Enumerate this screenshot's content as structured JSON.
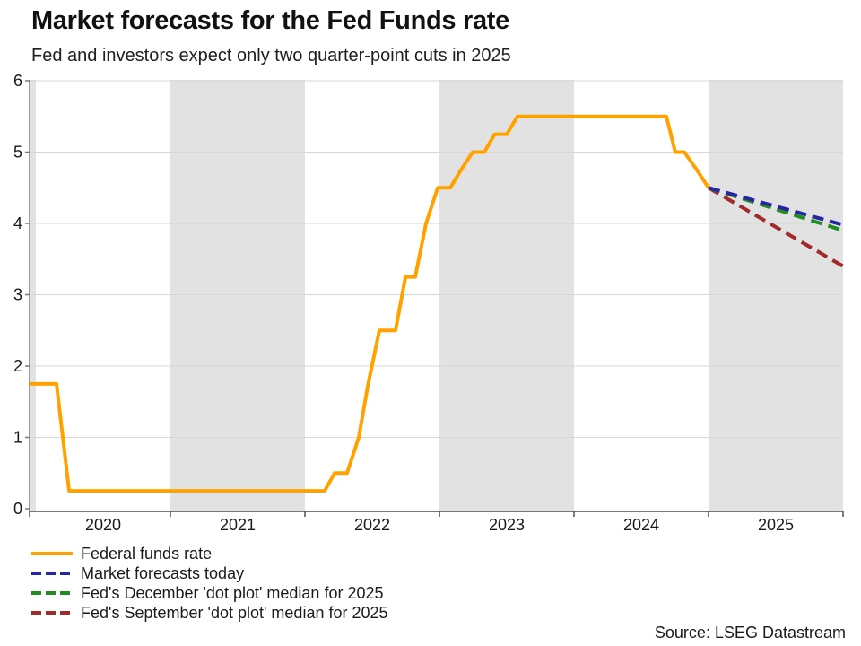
{
  "title": "Market forecasts for the Fed Funds rate",
  "subtitle": "Fed and investors expect only two quarter-point cuts in 2025",
  "source": "Source: LSEG Datastream",
  "colors": {
    "band": "#E2E2E2",
    "grid": "#D7D7D7",
    "axis": "#7A7A7A",
    "axis_dark": "#4D4D4D",
    "text": "#1A1A1A",
    "orange": "#FFA200",
    "blue": "#2626A0",
    "green": "#228B22",
    "dark_red": "#A12A2A"
  },
  "chart_data": {
    "type": "line",
    "title": "Market forecasts for the Fed Funds rate",
    "subtitle": "Fed and investors expect only two quarter-point cuts in 2025",
    "xlabel": "",
    "ylabel": "",
    "grid": true,
    "legend_position": "bottom-left",
    "x_axis": {
      "range": [
        2019.953,
        2026
      ],
      "tick_years": [
        2020,
        2021,
        2022,
        2023,
        2024,
        2025
      ]
    },
    "y_axis": {
      "range": [
        0,
        6
      ],
      "ticks": [
        0,
        1,
        2,
        3,
        4,
        5,
        6
      ]
    },
    "shaded_periods": [
      [
        2019.953,
        2020
      ],
      [
        2021,
        2022
      ],
      [
        2023,
        2024
      ],
      [
        2025,
        2026
      ]
    ],
    "series": [
      {
        "id": "federal-funds-rate",
        "name": "Federal funds rate",
        "color": "#FFA200",
        "style": "solid",
        "points": [
          [
            2019.953,
            1.75
          ],
          [
            2020.153,
            1.75
          ],
          [
            2020.247,
            0.25
          ],
          [
            2022.147,
            0.25
          ],
          [
            2022.22,
            0.5
          ],
          [
            2022.313,
            0.5
          ],
          [
            2022.4,
            1.0
          ],
          [
            2022.47,
            1.75
          ],
          [
            2022.553,
            2.5
          ],
          [
            2022.673,
            2.5
          ],
          [
            2022.747,
            3.25
          ],
          [
            2022.82,
            3.25
          ],
          [
            2022.9,
            4.0
          ],
          [
            2022.987,
            4.5
          ],
          [
            2023.08,
            4.5
          ],
          [
            2023.16,
            4.75
          ],
          [
            2023.247,
            5.0
          ],
          [
            2023.333,
            5.0
          ],
          [
            2023.41,
            5.25
          ],
          [
            2023.5,
            5.25
          ],
          [
            2023.58,
            5.5
          ],
          [
            2024.687,
            5.5
          ],
          [
            2024.753,
            5.0
          ],
          [
            2024.82,
            5.0
          ],
          [
            2024.913,
            4.75
          ],
          [
            2025.0,
            4.5
          ]
        ]
      },
      {
        "id": "market-forecasts-today",
        "name": "Market forecasts today",
        "color": "#2626A0",
        "style": "dashed",
        "points": [
          [
            2025.0,
            4.5
          ],
          [
            2026.0,
            3.98
          ]
        ]
      },
      {
        "id": "dec-dot-plot-median-2025",
        "name": "Fed's December 'dot plot' median for 2025",
        "color": "#228B22",
        "style": "dashed",
        "points": [
          [
            2025.0,
            4.5
          ],
          [
            2026.0,
            3.9
          ]
        ]
      },
      {
        "id": "sep-dot-plot-median-2025",
        "name": "Fed's September 'dot plot' median for 2025",
        "color": "#A12A2A",
        "style": "dashed",
        "points": [
          [
            2025.0,
            4.5
          ],
          [
            2026.0,
            3.4
          ]
        ]
      }
    ]
  }
}
